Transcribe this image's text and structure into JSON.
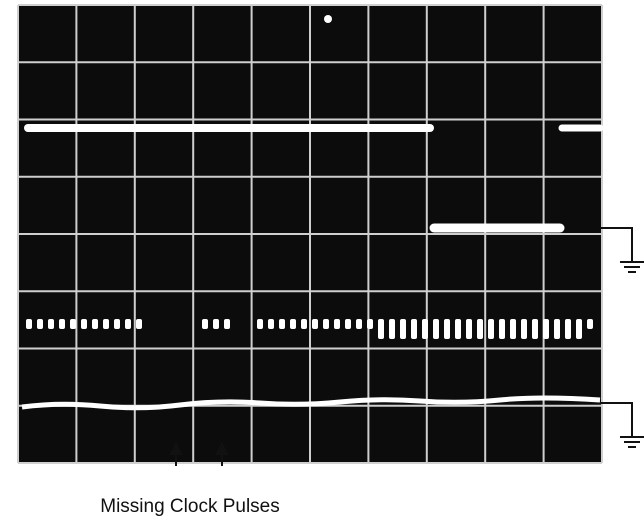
{
  "caption": "Missing Clock Pulses"
}
